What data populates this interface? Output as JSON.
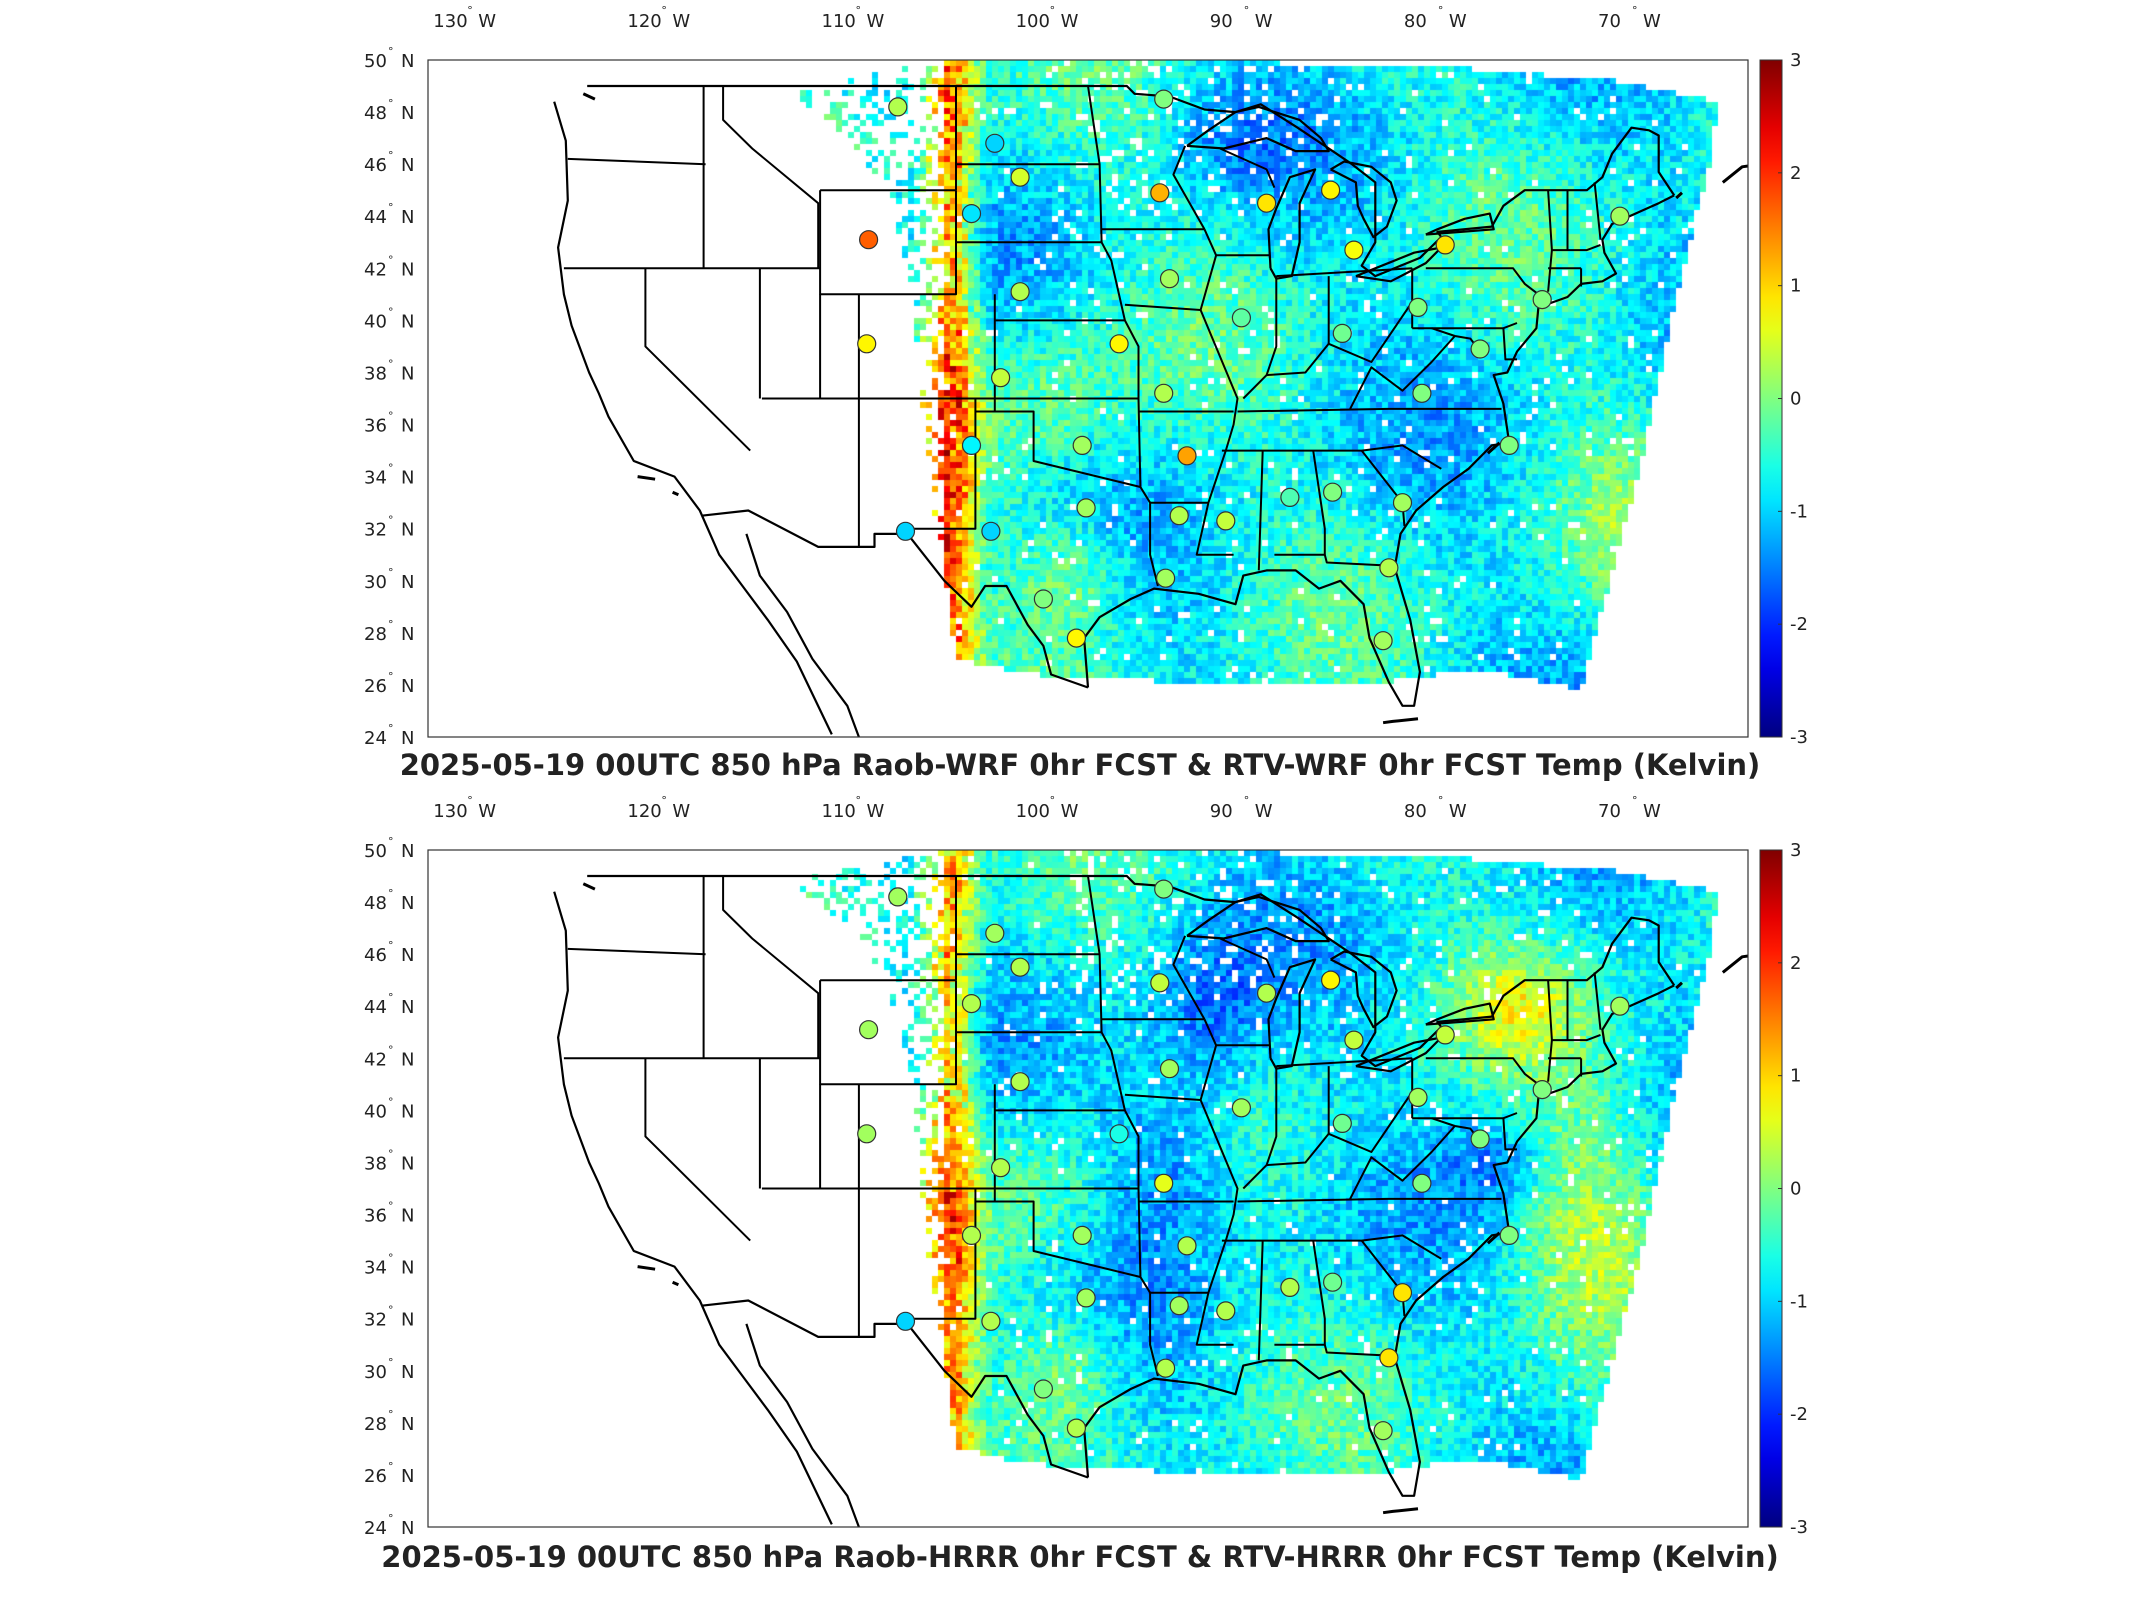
{
  "panels": [
    {
      "title": "2025-05-19 00UTC 850 hPa Raob-WRF 0hr FCST & RTV-WRF 0hr FCST Temp (Kelvin)",
      "stations": [
        {
          "lon": -107.0,
          "lat": 48.2,
          "value": 0.3
        },
        {
          "lon": -102.0,
          "lat": 46.8,
          "value": -1.0
        },
        {
          "lon": -100.7,
          "lat": 45.5,
          "value": 0.5
        },
        {
          "lon": -93.5,
          "lat": 44.9,
          "value": 1.2
        },
        {
          "lon": -103.2,
          "lat": 44.1,
          "value": -0.9
        },
        {
          "lon": -108.5,
          "lat": 43.1,
          "value": 1.7
        },
        {
          "lon": -88.0,
          "lat": 44.5,
          "value": 0.9
        },
        {
          "lon": -84.7,
          "lat": 45.0,
          "value": 0.8
        },
        {
          "lon": -83.5,
          "lat": 42.7,
          "value": 0.7
        },
        {
          "lon": -78.8,
          "lat": 42.9,
          "value": 0.9
        },
        {
          "lon": -108.6,
          "lat": 39.1,
          "value": 0.8
        },
        {
          "lon": -100.7,
          "lat": 41.1,
          "value": 0.3
        },
        {
          "lon": -95.6,
          "lat": 39.1,
          "value": 0.8
        },
        {
          "lon": -101.7,
          "lat": 37.8,
          "value": 0.4
        },
        {
          "lon": -93.3,
          "lat": 37.2,
          "value": 0.3
        },
        {
          "lon": -103.2,
          "lat": 35.2,
          "value": -0.8
        },
        {
          "lon": -97.5,
          "lat": 35.2,
          "value": 0.2
        },
        {
          "lon": -92.1,
          "lat": 34.8,
          "value": 1.3
        },
        {
          "lon": -97.3,
          "lat": 32.8,
          "value": 0.2
        },
        {
          "lon": -106.6,
          "lat": 31.9,
          "value": -1.0
        },
        {
          "lon": -102.2,
          "lat": 31.9,
          "value": -1.0
        },
        {
          "lon": -92.5,
          "lat": 32.5,
          "value": 0.3
        },
        {
          "lon": -90.1,
          "lat": 32.3,
          "value": 0.4
        },
        {
          "lon": -86.8,
          "lat": 33.2,
          "value": -0.3
        },
        {
          "lon": -84.6,
          "lat": 33.4,
          "value": 0.0
        },
        {
          "lon": -81.0,
          "lat": 33.0,
          "value": 0.2
        },
        {
          "lon": -97.8,
          "lat": 27.8,
          "value": 0.8
        },
        {
          "lon": -93.2,
          "lat": 30.1,
          "value": 0.2
        },
        {
          "lon": -82.0,
          "lat": 27.7,
          "value": 0.2
        },
        {
          "lon": -81.7,
          "lat": 30.5,
          "value": 0.3
        },
        {
          "lon": -99.5,
          "lat": 29.3,
          "value": 0.0
        },
        {
          "lon": -93.0,
          "lat": 41.6,
          "value": 0.2
        },
        {
          "lon": -89.3,
          "lat": 40.1,
          "value": -0.2
        },
        {
          "lon": -84.1,
          "lat": 39.5,
          "value": -0.1
        },
        {
          "lon": -80.2,
          "lat": 40.5,
          "value": 0.0
        },
        {
          "lon": -77.0,
          "lat": 38.9,
          "value": 0.0
        },
        {
          "lon": -80.0,
          "lat": 37.2,
          "value": 0.0
        },
        {
          "lon": -69.8,
          "lat": 44.0,
          "value": 0.2
        },
        {
          "lon": -73.8,
          "lat": 40.8,
          "value": 0.0
        },
        {
          "lon": -75.5,
          "lat": 35.2,
          "value": 0.0
        },
        {
          "lon": -93.3,
          "lat": 48.5,
          "value": 0.0
        }
      ]
    },
    {
      "title": "2025-05-19 00UTC 850 hPa Raob-HRRR 0hr FCST & RTV-HRRR 0hr FCST Temp (Kelvin)",
      "stations": [
        {
          "lon": -107.0,
          "lat": 48.2,
          "value": 0.2
        },
        {
          "lon": -102.0,
          "lat": 46.8,
          "value": 0.2
        },
        {
          "lon": -100.7,
          "lat": 45.5,
          "value": 0.3
        },
        {
          "lon": -93.5,
          "lat": 44.9,
          "value": 0.4
        },
        {
          "lon": -103.2,
          "lat": 44.1,
          "value": 0.3
        },
        {
          "lon": -108.5,
          "lat": 43.1,
          "value": 0.2
        },
        {
          "lon": -88.0,
          "lat": 44.5,
          "value": 0.3
        },
        {
          "lon": -84.7,
          "lat": 45.0,
          "value": 0.8
        },
        {
          "lon": -83.5,
          "lat": 42.7,
          "value": 0.4
        },
        {
          "lon": -78.8,
          "lat": 42.9,
          "value": 0.4
        },
        {
          "lon": -108.6,
          "lat": 39.1,
          "value": 0.2
        },
        {
          "lon": -100.7,
          "lat": 41.1,
          "value": 0.3
        },
        {
          "lon": -95.6,
          "lat": 39.1,
          "value": -0.6
        },
        {
          "lon": -101.7,
          "lat": 37.8,
          "value": 0.3
        },
        {
          "lon": -93.3,
          "lat": 37.2,
          "value": 0.6
        },
        {
          "lon": -103.2,
          "lat": 35.2,
          "value": 0.3
        },
        {
          "lon": -97.5,
          "lat": 35.2,
          "value": 0.2
        },
        {
          "lon": -92.1,
          "lat": 34.8,
          "value": 0.3
        },
        {
          "lon": -97.3,
          "lat": 32.8,
          "value": 0.2
        },
        {
          "lon": -106.6,
          "lat": 31.9,
          "value": -1.0
        },
        {
          "lon": -102.2,
          "lat": 31.9,
          "value": 0.3
        },
        {
          "lon": -92.5,
          "lat": 32.5,
          "value": 0.2
        },
        {
          "lon": -90.1,
          "lat": 32.3,
          "value": 0.3
        },
        {
          "lon": -86.8,
          "lat": 33.2,
          "value": 0.3
        },
        {
          "lon": -84.6,
          "lat": 33.4,
          "value": -0.1
        },
        {
          "lon": -81.0,
          "lat": 33.0,
          "value": 0.9
        },
        {
          "lon": -97.8,
          "lat": 27.8,
          "value": 0.3
        },
        {
          "lon": -93.2,
          "lat": 30.1,
          "value": 0.3
        },
        {
          "lon": -82.0,
          "lat": 27.7,
          "value": 0.2
        },
        {
          "lon": -81.7,
          "lat": 30.5,
          "value": 0.9
        },
        {
          "lon": -99.5,
          "lat": 29.3,
          "value": 0.0
        },
        {
          "lon": -93.0,
          "lat": 41.6,
          "value": 0.2
        },
        {
          "lon": -89.3,
          "lat": 40.1,
          "value": 0.2
        },
        {
          "lon": -84.1,
          "lat": 39.5,
          "value": -0.1
        },
        {
          "lon": -80.2,
          "lat": 40.5,
          "value": 0.2
        },
        {
          "lon": -77.0,
          "lat": 38.9,
          "value": 0.0
        },
        {
          "lon": -80.0,
          "lat": 37.2,
          "value": 0.0
        },
        {
          "lon": -69.8,
          "lat": 44.0,
          "value": 0.2
        },
        {
          "lon": -73.8,
          "lat": 40.8,
          "value": 0.0
        },
        {
          "lon": -75.5,
          "lat": 35.2,
          "value": 0.0
        },
        {
          "lon": -93.3,
          "lat": 48.5,
          "value": 0.0
        }
      ]
    }
  ],
  "lon_ticks": [
    {
      "lon": -130,
      "label": "130",
      "dir": "W"
    },
    {
      "lon": -120,
      "label": "120",
      "dir": "W"
    },
    {
      "lon": -110,
      "label": "110",
      "dir": "W"
    },
    {
      "lon": -100,
      "label": "100",
      "dir": "W"
    },
    {
      "lon": -90,
      "label": "90",
      "dir": "W"
    },
    {
      "lon": -80,
      "label": "80",
      "dir": "W"
    },
    {
      "lon": -70,
      "label": "70",
      "dir": "W"
    }
  ],
  "lat_ticks": [
    {
      "lat": 50,
      "label": "50",
      "dir": "N"
    },
    {
      "lat": 48,
      "label": "48",
      "dir": "N"
    },
    {
      "lat": 46,
      "label": "46",
      "dir": "N"
    },
    {
      "lat": 44,
      "label": "44",
      "dir": "N"
    },
    {
      "lat": 42,
      "label": "42",
      "dir": "N"
    },
    {
      "lat": 40,
      "label": "40",
      "dir": "N"
    },
    {
      "lat": 38,
      "label": "38",
      "dir": "N"
    },
    {
      "lat": 36,
      "label": "36",
      "dir": "N"
    },
    {
      "lat": 34,
      "label": "34",
      "dir": "N"
    },
    {
      "lat": 32,
      "label": "32",
      "dir": "N"
    },
    {
      "lat": 30,
      "label": "30",
      "dir": "N"
    },
    {
      "lat": 28,
      "label": "28",
      "dir": "N"
    },
    {
      "lat": 26,
      "label": "26",
      "dir": "N"
    },
    {
      "lat": 24,
      "label": "24",
      "dir": "N"
    }
  ],
  "colorbar": {
    "min": -3,
    "max": 3,
    "tick_labels": [
      "3",
      "2",
      "1",
      "0",
      "-1",
      "-2",
      "-3"
    ],
    "colormap": "jet"
  },
  "colors": {
    "map_outline": "#000000",
    "no_data": "#ffffff"
  }
}
